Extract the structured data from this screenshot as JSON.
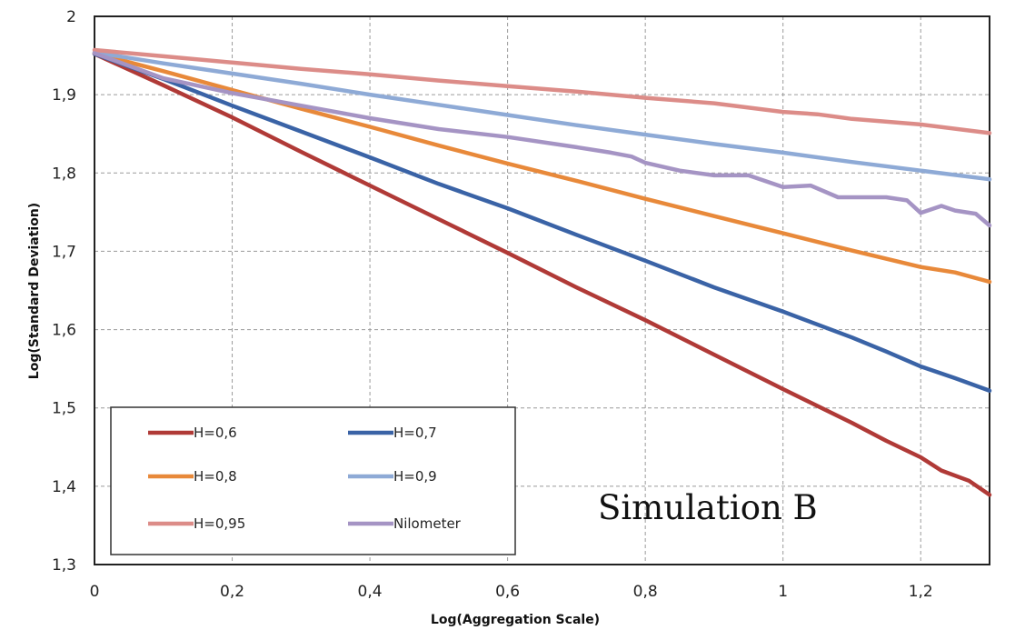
{
  "chart_data": {
    "type": "line",
    "title": "",
    "xlabel": "Log(Aggregation Scale)",
    "ylabel": "Log(Standard Deviation)",
    "xlim": [
      0,
      1.3
    ],
    "ylim": [
      1.3,
      2.0
    ],
    "xticks": [
      "0",
      "0,2",
      "0,4",
      "0,6",
      "0,8",
      "1",
      "1,2"
    ],
    "xtick_values": [
      0,
      0.2,
      0.4,
      0.6,
      0.8,
      1.0,
      1.2
    ],
    "yticks": [
      "1,3",
      "1,4",
      "1,5",
      "1,6",
      "1,7",
      "1,8",
      "1,9",
      "2"
    ],
    "ytick_values": [
      1.3,
      1.4,
      1.5,
      1.6,
      1.7,
      1.8,
      1.9,
      2.0
    ],
    "grid": "dashed",
    "legend_position": "bottom-left",
    "annotation": "Simulation B",
    "series": [
      {
        "name": "H=0,6",
        "color": "#b03a37",
        "points": [
          [
            0,
            1.952
          ],
          [
            0.1,
            1.912
          ],
          [
            0.2,
            1.871
          ],
          [
            0.3,
            1.827
          ],
          [
            0.4,
            1.784
          ],
          [
            0.5,
            1.741
          ],
          [
            0.6,
            1.698
          ],
          [
            0.7,
            1.654
          ],
          [
            0.8,
            1.612
          ],
          [
            0.9,
            1.568
          ],
          [
            1.0,
            1.524
          ],
          [
            1.1,
            1.481
          ],
          [
            1.15,
            1.458
          ],
          [
            1.2,
            1.437
          ],
          [
            1.23,
            1.42
          ],
          [
            1.27,
            1.407
          ],
          [
            1.3,
            1.389
          ]
        ]
      },
      {
        "name": "H=0,7",
        "color": "#3a63a6",
        "points": [
          [
            0,
            1.952
          ],
          [
            0.1,
            1.92
          ],
          [
            0.2,
            1.886
          ],
          [
            0.3,
            1.853
          ],
          [
            0.4,
            1.82
          ],
          [
            0.5,
            1.786
          ],
          [
            0.6,
            1.755
          ],
          [
            0.7,
            1.721
          ],
          [
            0.8,
            1.688
          ],
          [
            0.9,
            1.654
          ],
          [
            1.0,
            1.623
          ],
          [
            1.1,
            1.59
          ],
          [
            1.15,
            1.572
          ],
          [
            1.2,
            1.553
          ],
          [
            1.25,
            1.538
          ],
          [
            1.3,
            1.522
          ]
        ]
      },
      {
        "name": "H=0,8",
        "color": "#e8893a",
        "points": [
          [
            0,
            1.953
          ],
          [
            0.1,
            1.93
          ],
          [
            0.2,
            1.906
          ],
          [
            0.3,
            1.882
          ],
          [
            0.4,
            1.859
          ],
          [
            0.5,
            1.835
          ],
          [
            0.6,
            1.812
          ],
          [
            0.7,
            1.79
          ],
          [
            0.8,
            1.767
          ],
          [
            0.9,
            1.745
          ],
          [
            1.0,
            1.723
          ],
          [
            1.1,
            1.701
          ],
          [
            1.2,
            1.68
          ],
          [
            1.25,
            1.673
          ],
          [
            1.3,
            1.661
          ]
        ]
      },
      {
        "name": "H=0,9",
        "color": "#8eaad6",
        "points": [
          [
            0,
            1.954
          ],
          [
            0.1,
            1.94
          ],
          [
            0.2,
            1.927
          ],
          [
            0.3,
            1.914
          ],
          [
            0.4,
            1.9
          ],
          [
            0.5,
            1.887
          ],
          [
            0.6,
            1.874
          ],
          [
            0.7,
            1.861
          ],
          [
            0.8,
            1.849
          ],
          [
            0.9,
            1.837
          ],
          [
            1.0,
            1.826
          ],
          [
            1.1,
            1.814
          ],
          [
            1.2,
            1.803
          ],
          [
            1.3,
            1.792
          ]
        ]
      },
      {
        "name": "H=0,95",
        "color": "#dc8c88",
        "points": [
          [
            0,
            1.957
          ],
          [
            0.1,
            1.949
          ],
          [
            0.2,
            1.941
          ],
          [
            0.3,
            1.933
          ],
          [
            0.4,
            1.926
          ],
          [
            0.5,
            1.918
          ],
          [
            0.6,
            1.911
          ],
          [
            0.7,
            1.904
          ],
          [
            0.8,
            1.896
          ],
          [
            0.9,
            1.889
          ],
          [
            1.0,
            1.878
          ],
          [
            1.05,
            1.875
          ],
          [
            1.1,
            1.869
          ],
          [
            1.2,
            1.862
          ],
          [
            1.3,
            1.851
          ]
        ]
      },
      {
        "name": "Nilometer",
        "color": "#a594c4",
        "points": [
          [
            0,
            1.953
          ],
          [
            0.1,
            1.921
          ],
          [
            0.2,
            1.902
          ],
          [
            0.3,
            1.886
          ],
          [
            0.4,
            1.87
          ],
          [
            0.5,
            1.856
          ],
          [
            0.6,
            1.846
          ],
          [
            0.7,
            1.833
          ],
          [
            0.75,
            1.826
          ],
          [
            0.78,
            1.821
          ],
          [
            0.8,
            1.813
          ],
          [
            0.85,
            1.803
          ],
          [
            0.9,
            1.797
          ],
          [
            0.95,
            1.797
          ],
          [
            1.0,
            1.782
          ],
          [
            1.04,
            1.784
          ],
          [
            1.08,
            1.769
          ],
          [
            1.12,
            1.769
          ],
          [
            1.15,
            1.769
          ],
          [
            1.18,
            1.765
          ],
          [
            1.2,
            1.749
          ],
          [
            1.23,
            1.758
          ],
          [
            1.25,
            1.752
          ],
          [
            1.28,
            1.748
          ],
          [
            1.3,
            1.733
          ]
        ]
      }
    ]
  }
}
